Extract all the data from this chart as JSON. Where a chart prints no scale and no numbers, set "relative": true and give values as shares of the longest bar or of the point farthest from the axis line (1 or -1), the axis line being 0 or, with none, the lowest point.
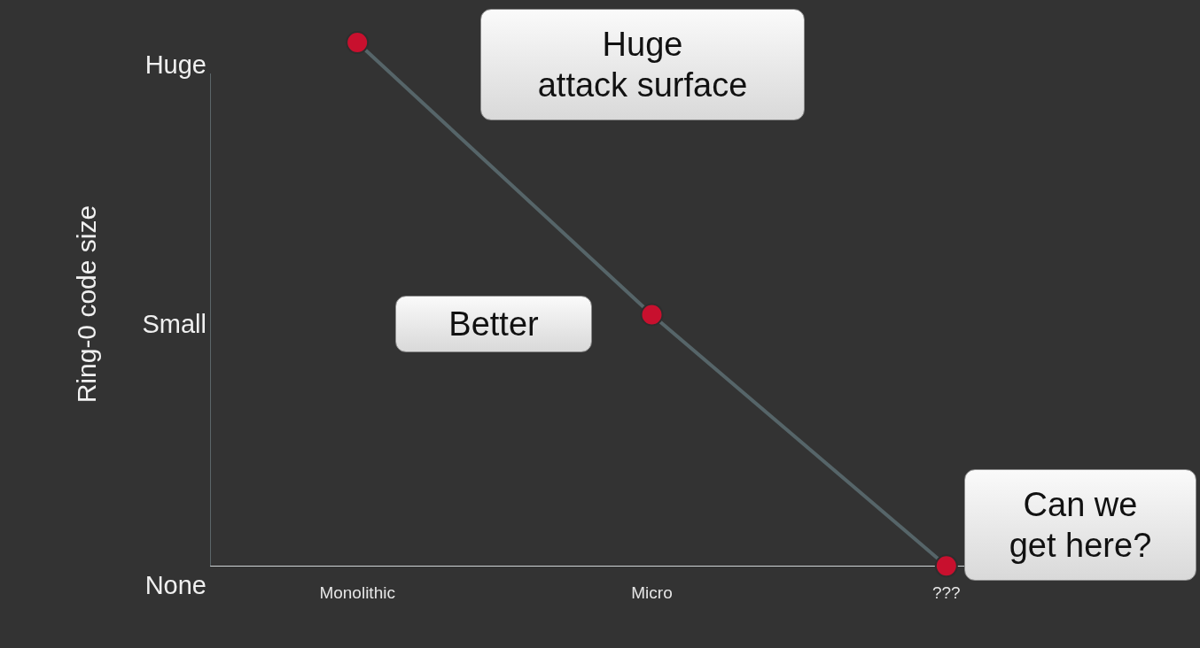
{
  "chart_data": {
    "type": "line",
    "ylabel": "Ring-0 code size",
    "categories": [
      "Monolithic",
      "Micro",
      "???"
    ],
    "series": [
      {
        "color": "#566569",
        "values": [
          1,
          0.48,
          0
        ]
      }
    ],
    "relative": true,
    "marker": "circle",
    "line_style": "solid",
    "grid": false,
    "legend": false,
    "annotations": [
      "Huge\nattack surface",
      "Better",
      "Can we\nget here?",
      "Huge",
      "Small",
      "None"
    ]
  }
}
